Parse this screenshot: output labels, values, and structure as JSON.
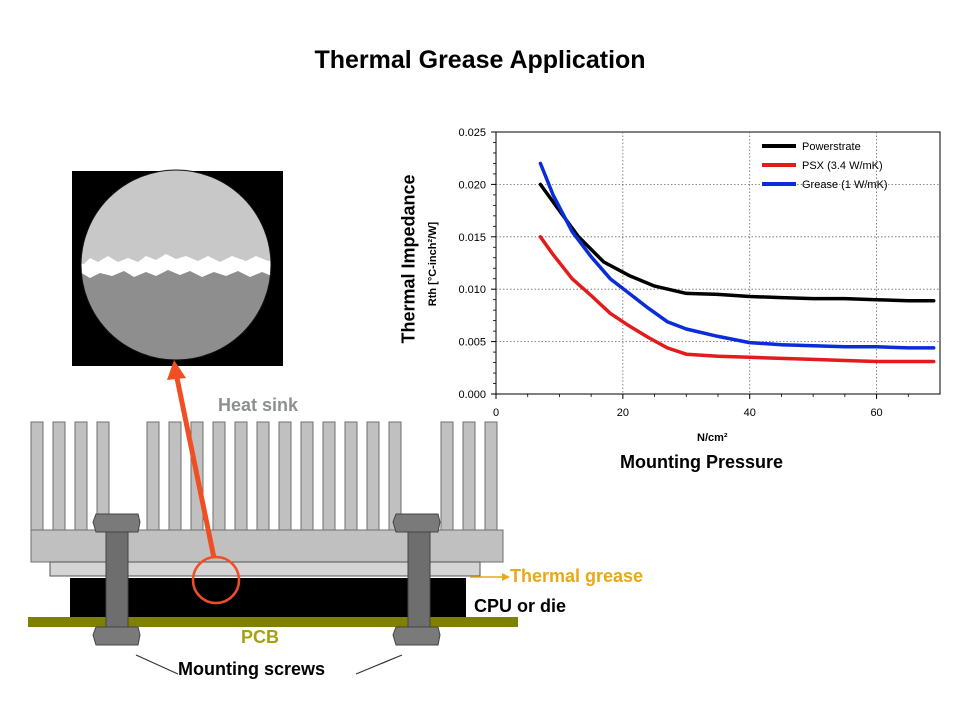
{
  "page": {
    "title": "Thermal Grease Application"
  },
  "diagram": {
    "labels": {
      "heat_sink": "Heat sink",
      "thermal_grease": "Thermal grease",
      "cpu": "CPU or die",
      "pcb": "PCB",
      "mounting_screws": "Mounting screws"
    },
    "colors": {
      "heat_sink": "#c0c0c0",
      "heat_sink_label": "#8c9093",
      "thermal_grease_label": "#e8a817",
      "pcb": "#808000",
      "pcb_label": "#a5a10f",
      "cpu": "#000000",
      "screws": "#6e6e6e",
      "highlight": "#f04e23"
    },
    "icons": [
      "micrograph-inset",
      "heat-sink-fins",
      "mounting-screw",
      "zoom-arrow"
    ]
  },
  "chart_data": {
    "type": "line",
    "title": "",
    "ylabel": "Thermal Impedance",
    "ylabel_sub": "Rth [°C-inch²/W]",
    "xlabel": "Mounting Pressure",
    "xlabel_sub": "N/cm²",
    "xlim": [
      0,
      70
    ],
    "ylim": [
      0,
      0.025
    ],
    "x_ticks": [
      "0",
      "20",
      "40",
      "60"
    ],
    "y_ticks": [
      "0.000",
      "0.005",
      "0.010",
      "0.015",
      "0.020",
      "0.025"
    ],
    "grid": true,
    "legend_position": "top-right",
    "series": [
      {
        "name": "Powerstrate",
        "color": "#000000",
        "x": [
          7,
          10,
          13,
          17,
          21,
          25,
          30,
          35,
          40,
          45,
          50,
          55,
          60,
          65,
          69
        ],
        "y": [
          0.02,
          0.0175,
          0.015,
          0.0126,
          0.0113,
          0.0103,
          0.0096,
          0.0095,
          0.0093,
          0.0092,
          0.0091,
          0.0091,
          0.009,
          0.0089,
          0.0089
        ]
      },
      {
        "name": "PSX  (3.4 W/mK)",
        "color": "#e31b1b",
        "x": [
          7,
          9,
          12,
          15,
          18,
          21,
          24,
          27,
          30,
          35,
          40,
          45,
          50,
          55,
          60,
          65,
          69
        ],
        "y": [
          0.015,
          0.0133,
          0.011,
          0.0094,
          0.0077,
          0.0065,
          0.0054,
          0.0044,
          0.0038,
          0.0036,
          0.0035,
          0.0034,
          0.0033,
          0.0032,
          0.0031,
          0.0031,
          0.0031
        ]
      },
      {
        "name": "Grease (1 W/mK)",
        "color": "#0b2dd9",
        "x": [
          7,
          9,
          12,
          15,
          18,
          21,
          24,
          27,
          30,
          35,
          40,
          45,
          50,
          55,
          60,
          65,
          69
        ],
        "y": [
          0.022,
          0.019,
          0.0155,
          0.0131,
          0.011,
          0.0096,
          0.0082,
          0.0069,
          0.0062,
          0.0055,
          0.0049,
          0.0047,
          0.0046,
          0.0045,
          0.0045,
          0.0044,
          0.0044
        ]
      }
    ]
  }
}
